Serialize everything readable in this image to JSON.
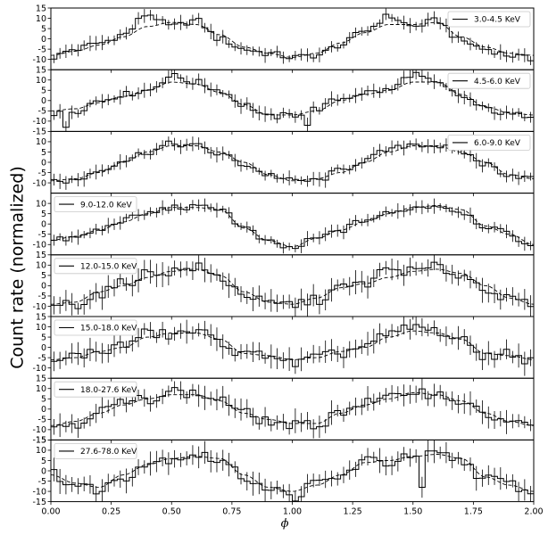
{
  "figure": {
    "ylabel": "Count rate (normalized)",
    "xlabel": "ϕ"
  },
  "chart_data": [
    {
      "type": "line",
      "legend": "3.0-4.5 KeV",
      "legend_position": "top-right",
      "xlim": [
        0,
        2
      ],
      "ylim": [
        -15,
        15
      ],
      "yticks": [
        15,
        10,
        5,
        0,
        -5,
        -10
      ],
      "x": [
        0.0,
        0.1,
        0.2,
        0.3,
        0.4,
        0.5,
        0.6,
        0.7,
        0.8,
        0.9,
        1.0,
        1.1,
        1.2,
        1.3,
        1.4,
        1.5,
        1.6,
        1.7,
        1.8,
        1.9,
        2.0
      ],
      "model": [
        -8,
        -6,
        -3,
        1,
        6,
        8,
        7,
        2,
        -4,
        -7,
        -9,
        -7,
        -2,
        3,
        7,
        7,
        8,
        1,
        -4,
        -7,
        -8
      ],
      "data": [
        -9,
        -5,
        -2,
        2,
        12,
        6,
        9,
        0,
        -5,
        -7,
        -9,
        -8,
        -3,
        4,
        11,
        6,
        9,
        -1,
        -5,
        -8,
        -10
      ]
    },
    {
      "type": "line",
      "legend": "4.5-6.0 KeV",
      "legend_position": "top-right",
      "xlim": [
        0,
        2
      ],
      "ylim": [
        -15,
        15
      ],
      "yticks": [
        15,
        10,
        5,
        0,
        -5,
        -10,
        -15
      ],
      "x": [
        0.0,
        0.1,
        0.2,
        0.3,
        0.4,
        0.5,
        0.6,
        0.7,
        0.8,
        0.9,
        1.0,
        1.1,
        1.2,
        1.3,
        1.4,
        1.5,
        1.6,
        1.7,
        1.8,
        1.9,
        2.0
      ],
      "model": [
        -5,
        -4,
        -1,
        2,
        5,
        9,
        8,
        4,
        -2,
        -7,
        -7,
        -5,
        0,
        3,
        5,
        9,
        9,
        3,
        -3,
        -6,
        -7
      ],
      "data": [
        -7,
        -5,
        0,
        3,
        5,
        12,
        9,
        5,
        -2,
        -8,
        -7,
        -4,
        1,
        4,
        5,
        13,
        8,
        2,
        -4,
        -7,
        -7
      ],
      "outliers": [
        [
          0.07,
          -13
        ],
        [
          1.06,
          -12
        ]
      ]
    },
    {
      "type": "line",
      "legend": "6.0-9.0 KeV",
      "legend_position": "top-right",
      "xlim": [
        0,
        2
      ],
      "ylim": [
        -15,
        15
      ],
      "yticks": [
        10,
        5,
        0,
        -5,
        -10
      ],
      "x": [
        0.0,
        0.1,
        0.2,
        0.3,
        0.4,
        0.5,
        0.6,
        0.7,
        0.8,
        0.9,
        1.0,
        1.1,
        1.2,
        1.3,
        1.4,
        1.5,
        1.6,
        1.7,
        1.8,
        1.9,
        2.0
      ],
      "model": [
        -9,
        -8,
        -5,
        0,
        5,
        8,
        8,
        5,
        0,
        -6,
        -9,
        -8,
        -5,
        0,
        5,
        8,
        8,
        5,
        0,
        -6,
        -8
      ],
      "data": [
        -9,
        -9,
        -4,
        1,
        5,
        9,
        8,
        4,
        -1,
        -6,
        -9,
        -9,
        -4,
        1,
        6,
        9,
        8,
        5,
        -1,
        -6,
        -8
      ]
    },
    {
      "type": "line",
      "legend": "9.0-12.0 KeV",
      "legend_position": "top-left",
      "xlim": [
        0,
        2
      ],
      "ylim": [
        -15,
        15
      ],
      "yticks": [
        10,
        5,
        0,
        -5,
        -10
      ],
      "x": [
        0.0,
        0.1,
        0.2,
        0.3,
        0.4,
        0.5,
        0.6,
        0.7,
        0.8,
        0.9,
        1.0,
        1.1,
        1.2,
        1.3,
        1.4,
        1.5,
        1.6,
        1.7,
        1.8,
        1.9,
        2.0
      ],
      "model": [
        -8,
        -6,
        -3,
        1,
        5,
        8,
        8,
        7,
        -2,
        -8,
        -11,
        -7,
        -3,
        1,
        5,
        8,
        9,
        7,
        -1,
        -5,
        -10
      ],
      "data": [
        -8,
        -7,
        -3,
        2,
        5,
        8,
        8,
        8,
        -2,
        -9,
        -12,
        -7,
        -3,
        2,
        5,
        8,
        9,
        6,
        -1,
        -5,
        -12
      ]
    },
    {
      "type": "line",
      "legend": "12.0-15.0 KeV",
      "legend_position": "top-left",
      "xlim": [
        0,
        2
      ],
      "ylim": [
        -15,
        15
      ],
      "yticks": [
        15,
        10,
        5,
        0,
        -5,
        -10
      ],
      "x": [
        0.0,
        0.1,
        0.2,
        0.3,
        0.4,
        0.5,
        0.6,
        0.7,
        0.8,
        0.9,
        1.0,
        1.1,
        1.2,
        1.3,
        1.4,
        1.5,
        1.6,
        1.7,
        1.8,
        1.9,
        2.0
      ],
      "model": [
        -9,
        -8,
        -3,
        0,
        4,
        7,
        8,
        5,
        -3,
        -8,
        -9,
        -6,
        -1,
        1,
        4,
        7,
        8,
        6,
        0,
        -6,
        -9
      ],
      "data": [
        -9,
        -9,
        -4,
        1,
        6,
        7,
        9,
        4,
        -4,
        -9,
        -9,
        -7,
        -1,
        1,
        8,
        7,
        9,
        5,
        -1,
        -7,
        -9
      ]
    },
    {
      "type": "line",
      "legend": "15.0-18.0 KeV",
      "legend_position": "top-left",
      "xlim": [
        0,
        2
      ],
      "ylim": [
        -15,
        15
      ],
      "yticks": [
        15,
        10,
        5,
        0,
        -5,
        -10
      ],
      "x": [
        0.0,
        0.1,
        0.2,
        0.3,
        0.4,
        0.5,
        0.6,
        0.7,
        0.8,
        0.9,
        1.0,
        1.1,
        1.2,
        1.3,
        1.4,
        1.5,
        1.6,
        1.7,
        1.8,
        1.9,
        2.0
      ],
      "model": [
        -6,
        -5,
        -2,
        0,
        5,
        7,
        7,
        4,
        -3,
        -4,
        -6,
        -5,
        -2,
        0,
        5,
        8,
        7,
        4,
        -3,
        -4,
        -6
      ],
      "data": [
        -8,
        -4,
        -2,
        1,
        7,
        6,
        8,
        3,
        -4,
        -3,
        -8,
        -5,
        -3,
        1,
        6,
        10,
        8,
        3,
        -4,
        -3,
        -7
      ]
    },
    {
      "type": "line",
      "legend": "18.0-27.6 KeV",
      "legend_position": "top-left",
      "xlim": [
        0,
        2
      ],
      "ylim": [
        -15,
        15
      ],
      "yticks": [
        15,
        10,
        5,
        0,
        -5,
        -10,
        -15
      ],
      "x": [
        0.0,
        0.1,
        0.2,
        0.3,
        0.4,
        0.5,
        0.6,
        0.7,
        0.8,
        0.9,
        1.0,
        1.1,
        1.2,
        1.3,
        1.4,
        1.5,
        1.6,
        1.7,
        1.8,
        1.9,
        2.0
      ],
      "model": [
        -8,
        -6,
        -2,
        2,
        5,
        7,
        7,
        4,
        -2,
        -5,
        -7,
        -7,
        -2,
        2,
        5,
        8,
        7,
        4,
        -2,
        -6,
        -8
      ],
      "data": [
        -8,
        -7,
        -1,
        3,
        5,
        9,
        7,
        5,
        -2,
        -6,
        -8,
        -8,
        -1,
        3,
        5,
        9,
        7,
        4,
        -3,
        -6,
        -9
      ]
    },
    {
      "type": "line",
      "legend": "27.6-78.0 KeV",
      "legend_position": "top-left",
      "xlim": [
        0,
        2
      ],
      "ylim": [
        -15,
        15
      ],
      "yticks": [
        15,
        10,
        5,
        0,
        -5,
        -10,
        -15
      ],
      "x": [
        0.0,
        0.1,
        0.2,
        0.3,
        0.4,
        0.5,
        0.6,
        0.7,
        0.8,
        0.9,
        1.0,
        1.1,
        1.2,
        1.3,
        1.4,
        1.5,
        1.6,
        1.7,
        1.8,
        1.9,
        2.0
      ],
      "model": [
        -2,
        -6,
        -8,
        -2,
        3,
        6,
        7,
        6,
        -2,
        -8,
        -10,
        -7,
        -2,
        4,
        5,
        7,
        8,
        6,
        -3,
        -7,
        -10
      ],
      "data": [
        -1,
        -7,
        -9,
        -3,
        4,
        6,
        8,
        5,
        -3,
        -8,
        -13,
        -6,
        -3,
        5,
        4,
        7,
        8,
        5,
        -4,
        -6,
        -12
      ],
      "outliers": [
        [
          0.22,
          -10
        ],
        [
          1.53,
          -8
        ]
      ]
    }
  ],
  "x_axis": {
    "ticks": [
      "0.00",
      "0.25",
      "0.50",
      "0.75",
      "1.00",
      "1.25",
      "1.50",
      "1.75",
      "2.00"
    ]
  }
}
